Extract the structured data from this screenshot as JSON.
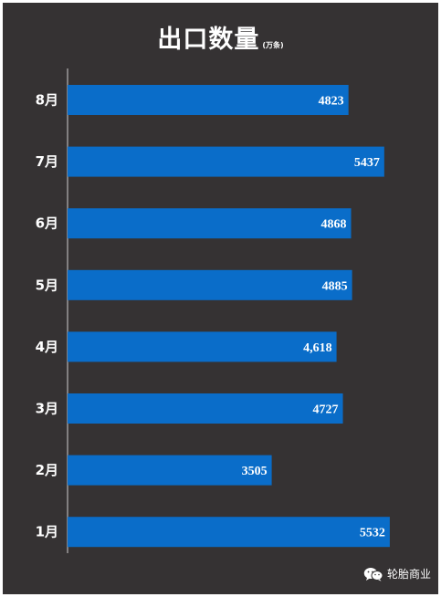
{
  "colors": {
    "background": "#353233",
    "bar": "#0a6dc9",
    "axis": "#cfcfcf",
    "text": "#ffffff"
  },
  "watermark": {
    "icon": "wechat-icon",
    "text": "轮胎商业"
  },
  "chart_data": {
    "type": "bar",
    "orientation": "horizontal",
    "title": "出口数量",
    "unit": "(万条)",
    "categories": [
      "8月",
      "7月",
      "6月",
      "5月",
      "4月",
      "3月",
      "2月",
      "1月"
    ],
    "values": [
      4823,
      5437,
      4868,
      4885,
      4618,
      4727,
      3505,
      5532
    ],
    "value_labels": [
      "4823",
      "5437",
      "4868",
      "4885",
      "4,618",
      "4727",
      "3505",
      "5532"
    ],
    "xlim": [
      0,
      5800
    ],
    "grid": false,
    "legend": "none"
  }
}
